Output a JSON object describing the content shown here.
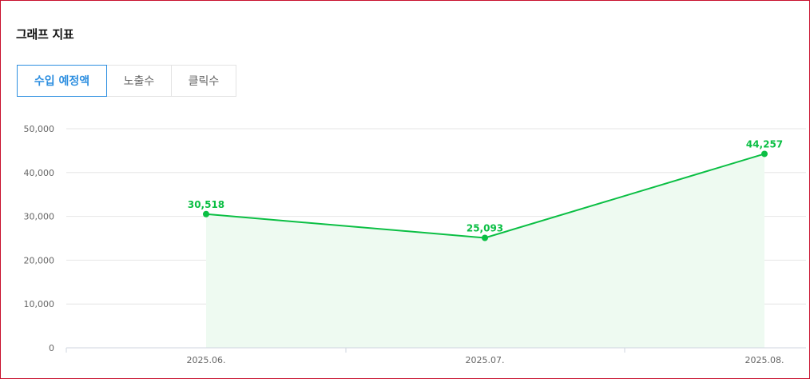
{
  "panel": {
    "title": "그래프 지표"
  },
  "tabs": [
    {
      "label": "수입 예정액",
      "active": true
    },
    {
      "label": "노출수",
      "active": false
    },
    {
      "label": "클릭수",
      "active": false
    }
  ],
  "colors": {
    "accent": "#2e8fe0",
    "series": "#0bbf44",
    "area": "#eefaf1",
    "grid": "#e6e6e6",
    "frame": "#c8102e"
  },
  "chart_data": {
    "type": "area",
    "title": "",
    "xlabel": "",
    "ylabel": "",
    "categories": [
      "2025.06.",
      "2025.07.",
      "2025.08."
    ],
    "series": [
      {
        "values": [
          30518,
          25093,
          44257
        ]
      }
    ],
    "data_labels": [
      "30,518",
      "25,093",
      "44,257"
    ],
    "y_ticks": [
      "0",
      "10,000",
      "20,000",
      "30,000",
      "40,000",
      "50,000"
    ],
    "ylim": [
      0,
      50000
    ],
    "grid": true,
    "legend": "none"
  }
}
